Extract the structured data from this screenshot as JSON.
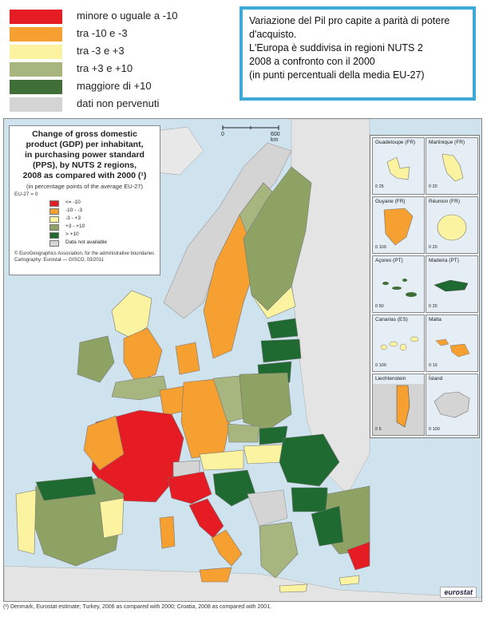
{
  "legend_top": {
    "items": [
      {
        "label": "minore o uguale a -10",
        "color": "#e51c23"
      },
      {
        "label": "tra -10 e -3",
        "color": "#f5a030"
      },
      {
        "label": "tra -3 e +3",
        "color": "#fbf3a0"
      },
      {
        "label": "tra +3 e +10",
        "color": "#a7b57e"
      },
      {
        "label": "maggiore di +10",
        "color": "#3f6f36"
      },
      {
        "label": "dati non pervenuti",
        "color": "#d4d4d4"
      }
    ]
  },
  "info_box": {
    "lines": [
      "Variazione del Pil pro capite a parità di potere",
      "d'acquisto.",
      "L'Europa è suddivisa in regioni NUTS 2",
      "2008 a confronto con il 2000",
      "(in punti percentuali della media EU-27)"
    ]
  },
  "map_legend": {
    "title_lines": [
      "Change of gross domestic",
      "product (GDP) per inhabitant,",
      "in purchasing power standard",
      "(PPS), by NUTS 2 regions,",
      "2008 as compared with 2000 (¹)"
    ],
    "subtitle": "(in percentage points of the average EU-27)",
    "ref": "EU-27 = 0",
    "items": [
      {
        "label": "<= -10",
        "color": "#e51c23"
      },
      {
        "label": "-10 - -3",
        "color": "#f5a030"
      },
      {
        "label": "-3 - +3",
        "color": "#fbf3a0"
      },
      {
        "label": "+3 - +10",
        "color": "#8ea363"
      },
      {
        "label": "> +10",
        "color": "#1f6a30"
      },
      {
        "label": "Data not available",
        "color": "#d4d4d4"
      }
    ],
    "credit_lines": [
      "© EuroGeographics Association, for the administrative boundaries",
      "Cartography: Eurostat — GISCO, 03/2011"
    ]
  },
  "scale": {
    "start": "0",
    "end": "600 km"
  },
  "insets": [
    {
      "name": "Guadeloupe (FR)",
      "scale": "0    25",
      "color": "#fbf3a0"
    },
    {
      "name": "Martinique (FR)",
      "scale": "0    20",
      "color": "#fbf3a0"
    },
    {
      "name": "Guyane (FR)",
      "scale": "0    100",
      "color": "#f5a030"
    },
    {
      "name": "Réunion (FR)",
      "scale": "0    20",
      "color": "#fbf3a0"
    },
    {
      "name": "Açores (PT)",
      "scale": "0    50",
      "color": "#3f6f36"
    },
    {
      "name": "Madeira (PT)",
      "scale": "0    20",
      "color": "#1f6a30"
    },
    {
      "name": "Canarias (ES)",
      "scale": "0    100",
      "color": "#fbf3a0"
    },
    {
      "name": "Malta",
      "scale": "0    10",
      "color": "#f5a030"
    },
    {
      "name": "Liechtenstein",
      "scale": "0    5",
      "color": "#f5a030"
    },
    {
      "name": "Ísland",
      "scale": "0    100",
      "color": "#d4d4d4"
    }
  ],
  "brand": "eurostat",
  "footnote": "(¹) Denmark, Eurostat estimate; Turkey, 2006 as compared with 2000; Croatia, 2008 as compared with 2001.",
  "colors": {
    "sea": "#cfe3ef",
    "frame_border": "#3da9d6"
  }
}
